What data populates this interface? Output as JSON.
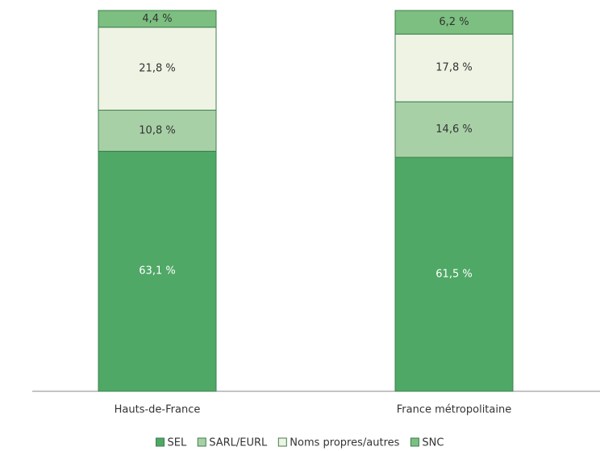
{
  "chart_data": {
    "type": "stacked-bar",
    "categories": [
      "Hauts-de-France",
      "France métropolitaine"
    ],
    "series": [
      {
        "name": "SEL",
        "color": "#4fa865",
        "values": [
          63.1,
          61.5
        ],
        "value_labels": [
          "63,1 %",
          "61,5 %"
        ]
      },
      {
        "name": "SARL/EURL",
        "color": "#a8d0a6",
        "values": [
          10.8,
          14.6
        ],
        "value_labels": [
          "10,8 %",
          "14,6 %"
        ]
      },
      {
        "name": "Noms propres/autres",
        "color": "#eef3e4",
        "values": [
          21.8,
          17.8
        ],
        "value_labels": [
          "21,8 %",
          "17,8 %"
        ]
      },
      {
        "name": "SNC",
        "color": "#7cbf80",
        "values": [
          4.4,
          6.2
        ],
        "value_labels": [
          "4,4 %",
          "6,2 %"
        ]
      }
    ]
  }
}
